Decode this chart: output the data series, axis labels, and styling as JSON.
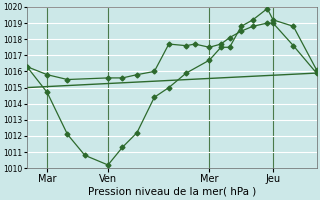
{
  "xlabel": "Pression niveau de la mer( hPa )",
  "background_color": "#cce8e8",
  "grid_color": "#ffffff",
  "line_color": "#2d6a2d",
  "ylim": [
    1010,
    1020
  ],
  "yticks": [
    1010,
    1011,
    1012,
    1013,
    1014,
    1015,
    1016,
    1017,
    1018,
    1019,
    1020
  ],
  "xlim": [
    0,
    100
  ],
  "day_positions": [
    7,
    28,
    63,
    85
  ],
  "day_labels": [
    "Mar",
    "Ven",
    "Mer",
    "Jeu"
  ],
  "series1_x": [
    0,
    7,
    14,
    28,
    33,
    38,
    44,
    49,
    55,
    58,
    63,
    67,
    70,
    74,
    78,
    83,
    85,
    92,
    100
  ],
  "series1_y": [
    1016.3,
    1015.8,
    1015.5,
    1015.6,
    1015.6,
    1015.8,
    1016.0,
    1017.7,
    1017.6,
    1017.7,
    1017.5,
    1017.7,
    1018.1,
    1018.5,
    1018.8,
    1019.0,
    1019.0,
    1017.6,
    1015.9
  ],
  "series2_x": [
    0,
    7,
    14,
    20,
    28,
    33,
    38,
    44,
    49,
    55,
    63,
    67,
    70,
    74,
    78,
    83,
    85,
    92,
    100
  ],
  "series2_y": [
    1016.3,
    1014.7,
    1012.1,
    1010.8,
    1010.2,
    1011.3,
    1012.2,
    1014.4,
    1015.0,
    1015.9,
    1016.7,
    1017.5,
    1017.5,
    1018.8,
    1019.2,
    1019.9,
    1019.2,
    1018.8,
    1016.1
  ],
  "series3_x": [
    0,
    100
  ],
  "series3_y": [
    1015.0,
    1015.9
  ]
}
